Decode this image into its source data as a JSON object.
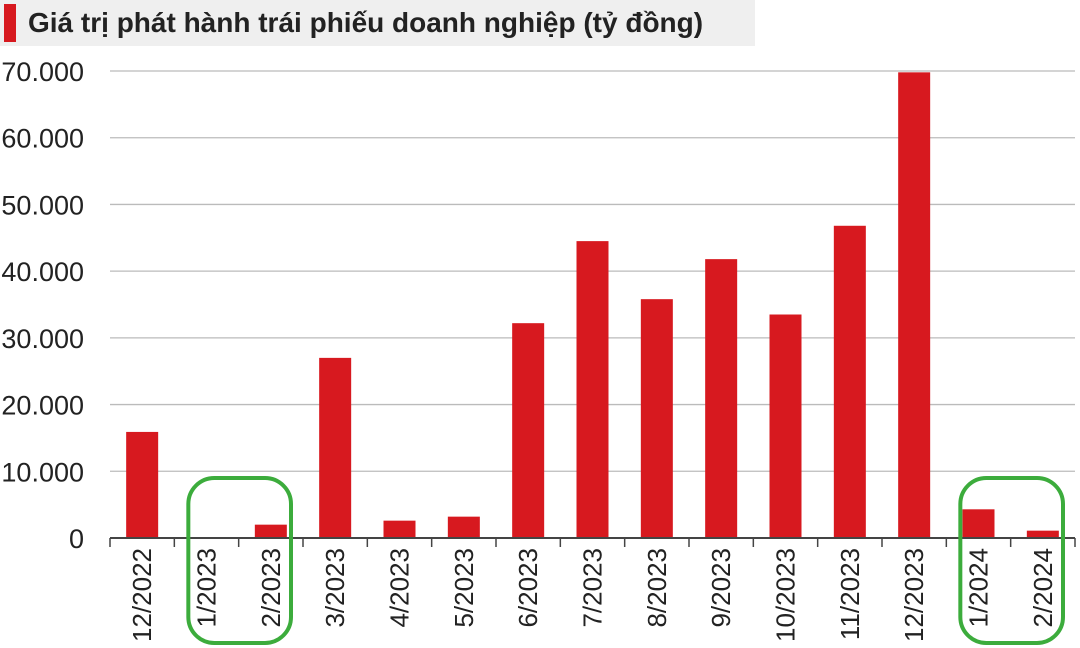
{
  "chart_data": {
    "type": "bar",
    "title": "Giá trị phát hành trái phiếu doanh nghiệp (tỷ đồng)",
    "xlabel": "",
    "ylabel": "",
    "categories": [
      "12/2022",
      "1/2023",
      "2/2023",
      "3/2023",
      "4/2023",
      "5/2023",
      "6/2023",
      "7/2023",
      "8/2023",
      "9/2023",
      "10/2023",
      "11/2023",
      "12/2023",
      "1/2024",
      "2/2024"
    ],
    "values": [
      15900,
      0,
      2000,
      27000,
      2600,
      3200,
      32200,
      44500,
      35800,
      41800,
      33500,
      46800,
      69800,
      4300,
      1100
    ],
    "yticks": [
      "0",
      "10.000",
      "20.000",
      "30.000",
      "40.000",
      "50.000",
      "60.000",
      "70.000"
    ],
    "ytick_values": [
      0,
      10000,
      20000,
      30000,
      40000,
      50000,
      60000,
      70000
    ],
    "ylim": [
      0,
      70000
    ],
    "grid": true,
    "legend": "none",
    "highlighted_categories": [
      [
        "1/2023",
        "2/2023"
      ],
      [
        "1/2024",
        "2/2024"
      ]
    ],
    "colors": {
      "bar": "#d7191f",
      "grid": "#bbbbbb",
      "axis": "#444444",
      "highlight": "#3cac3c",
      "title_bg": "#efefef",
      "title_accent": "#d7191f"
    }
  }
}
